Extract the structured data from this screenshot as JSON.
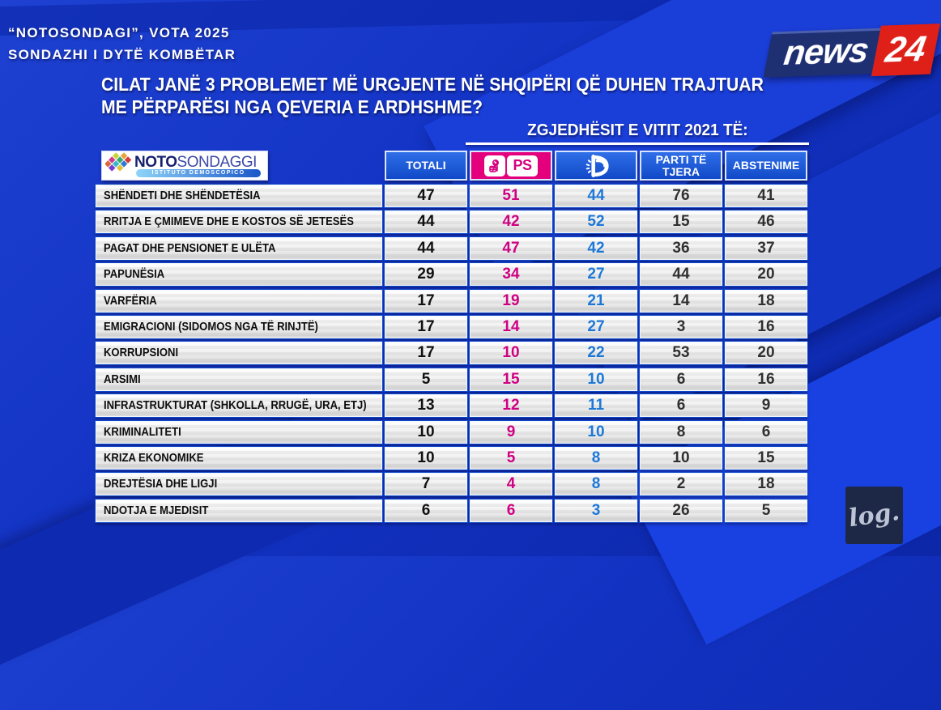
{
  "broadcast": {
    "topline1": "“NOTOSONDAGI”, VOTA 2025",
    "topline2": "SONDAZHI I DYTË KOMBËTAR",
    "question_line1": "CILAT JANË 3 PROBLEMET MË URGJENTE NË SHQIPËRI QË DUHEN TRAJTUAR",
    "question_line2": "ME PËRPARËSI NGA QEVERIA E ARDHSHME?",
    "group_header": "ZGJEDHËSIT E VITIT 2021 TË:"
  },
  "branding": {
    "channel_name": "news",
    "channel_number": "24",
    "pollster_bold": "NOTO",
    "pollster_light": "SONDAGGI",
    "pollster_subtitle": "ISTITUTO DEMOSCOPICO",
    "watermark": "log."
  },
  "table_header": {
    "totali": "TOTALI",
    "ps": "PS",
    "parti_te_tjera": "PARTI TË TJERA",
    "abstenime": "ABSTENIME"
  },
  "colors": {
    "background_blue": "#1232c2",
    "header_cell_blue": "#1149c8",
    "ps_magenta": "#e4007d",
    "pd_value_blue": "#1c78d8",
    "ps_value_magenta": "#cf0082",
    "news24_red": "#de2019",
    "news24_navy": "#1e2f72"
  },
  "chart_data": {
    "type": "table",
    "title": "CILAT JANË 3 PROBLEMET MË URGJENTE NË SHQIPËRI QË DUHEN TRAJTUAR ME PËRPARËSI NGA QEVERIA E ARDHSHME?",
    "group_header": "ZGJEDHËSIT E VITIT 2021 TË:",
    "columns": [
      "TOTALI",
      "PS",
      "PD",
      "PARTI TË TJERA",
      "ABSTENIME"
    ],
    "column_value_colors": [
      "#111111",
      "#cf0082",
      "#1c78d8",
      "#303030",
      "#303030"
    ],
    "rows": [
      {
        "label": "SHËNDETI DHE SHËNDETËSIA",
        "values": [
          47,
          51,
          44,
          76,
          41
        ]
      },
      {
        "label": "RRITJA E ÇMIMEVE DHE E KOSTOS SË JETESËS",
        "values": [
          44,
          42,
          52,
          15,
          46
        ]
      },
      {
        "label": "PAGAT DHE PENSIONET E ULËTA",
        "values": [
          44,
          47,
          42,
          36,
          37
        ]
      },
      {
        "label": "PAPUNËSIA",
        "values": [
          29,
          34,
          27,
          44,
          20
        ]
      },
      {
        "label": "VARFËRIA",
        "values": [
          17,
          19,
          21,
          14,
          18
        ]
      },
      {
        "label": "EMIGRACIONI (SIDOMOS NGA TË RINJTË)",
        "values": [
          17,
          14,
          27,
          3,
          16
        ]
      },
      {
        "label": "KORRUPSIONI",
        "values": [
          17,
          10,
          22,
          53,
          20
        ]
      },
      {
        "label": "ARSIMI",
        "values": [
          5,
          15,
          10,
          6,
          16
        ]
      },
      {
        "label": "INFRASTRUKTURAT (SHKOLLA, RRUGË, URA, ETJ)",
        "values": [
          13,
          12,
          11,
          6,
          9
        ]
      },
      {
        "label": "KRIMINALITETI",
        "values": [
          10,
          9,
          10,
          8,
          6
        ]
      },
      {
        "label": "KRIZA EKONOMIKE",
        "values": [
          10,
          5,
          8,
          10,
          15
        ]
      },
      {
        "label": "DREJTËSIA DHE LIGJI",
        "values": [
          7,
          4,
          8,
          2,
          18
        ]
      },
      {
        "label": "NDOTJA E MJEDISIT",
        "values": [
          6,
          6,
          3,
          26,
          5
        ]
      }
    ]
  }
}
